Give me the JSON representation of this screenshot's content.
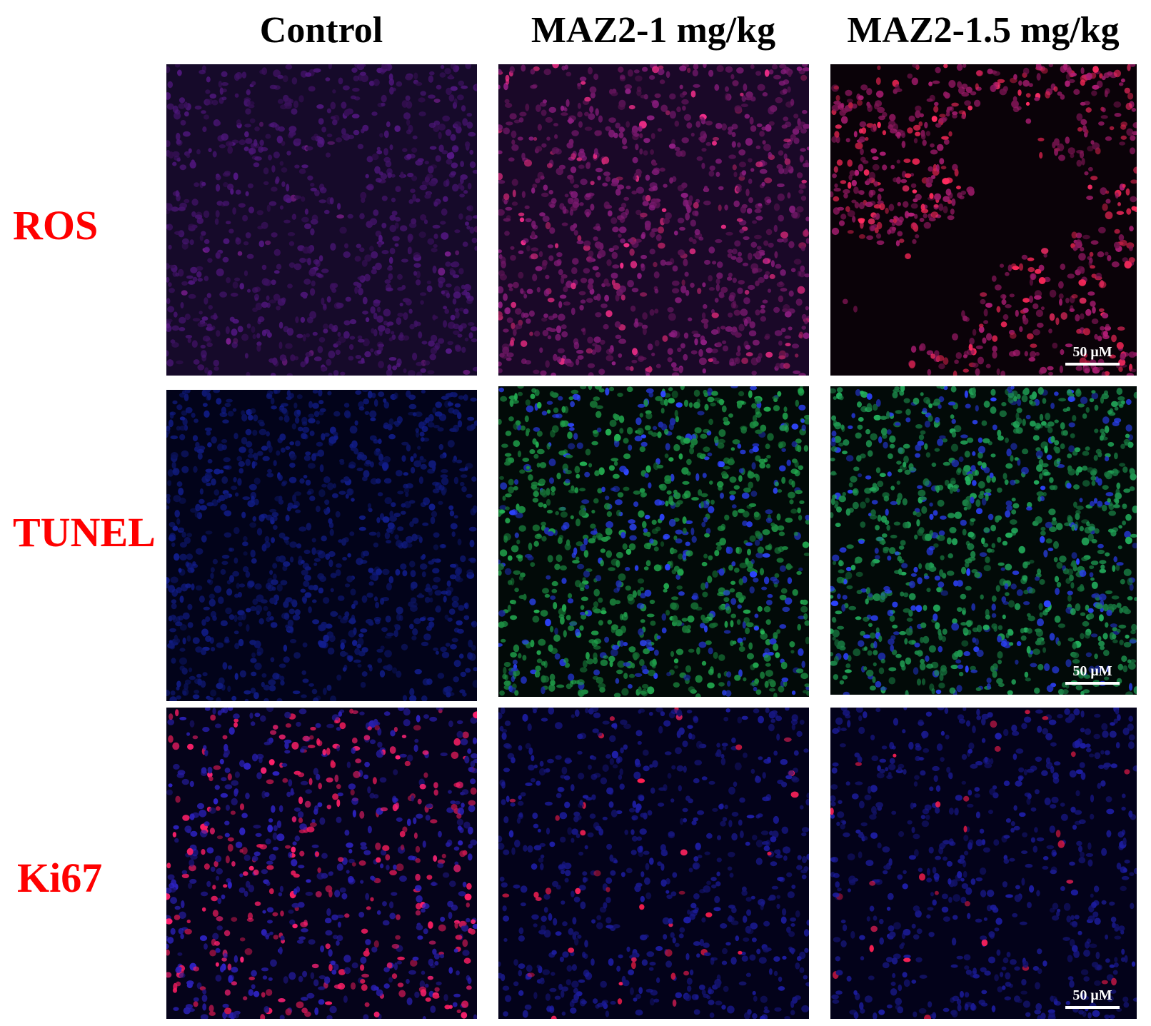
{
  "columns": [
    "Control",
    "MAZ2-1 mg/kg",
    "MAZ2-1.5 mg/kg"
  ],
  "rows": [
    {
      "label": "ROS",
      "scale_bar": "50 μM"
    },
    {
      "label": "TUNEL",
      "scale_bar": "50 μM"
    },
    {
      "label": "Ki67",
      "scale_bar": "50 μM"
    }
  ],
  "colors": {
    "row_label": "#ff0000",
    "column_header": "#000000",
    "background": "#ffffff",
    "scale_bar": "#ffffff",
    "dapi_blue": "#1e2cff",
    "tunel_green": "#2fbf5f",
    "ros_red": "#ff2a6a",
    "ki67_red": "#ff2060"
  },
  "panels": [
    {
      "row": "ROS",
      "column": "Control",
      "stain": "ROS"
    },
    {
      "row": "ROS",
      "column": "MAZ2-1 mg/kg",
      "stain": "ROS"
    },
    {
      "row": "ROS",
      "column": "MAZ2-1.5 mg/kg",
      "stain": "ROS"
    },
    {
      "row": "TUNEL",
      "column": "Control",
      "stain": "TUNEL"
    },
    {
      "row": "TUNEL",
      "column": "MAZ2-1 mg/kg",
      "stain": "TUNEL"
    },
    {
      "row": "TUNEL",
      "column": "MAZ2-1.5 mg/kg",
      "stain": "TUNEL"
    },
    {
      "row": "Ki67",
      "column": "Control",
      "stain": "Ki67"
    },
    {
      "row": "Ki67",
      "column": "MAZ2-1 mg/kg",
      "stain": "Ki67"
    },
    {
      "row": "Ki67",
      "column": "MAZ2-1.5 mg/kg",
      "stain": "Ki67"
    }
  ]
}
